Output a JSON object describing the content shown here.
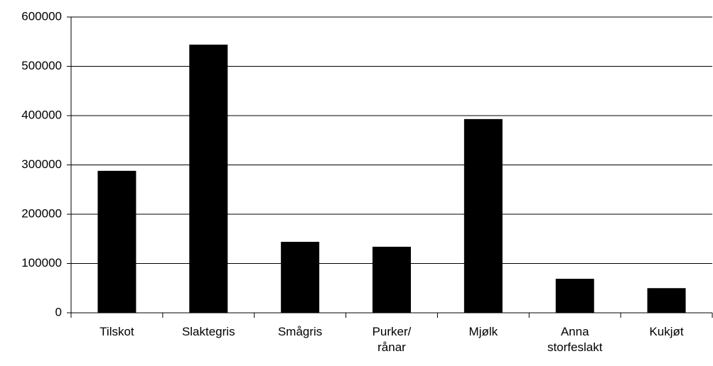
{
  "chart_data": {
    "type": "bar",
    "categories": [
      "Tilskot",
      "Slaktegris",
      "Smågris",
      "Purker/\nrånar",
      "Mjølk",
      "Anna\nstorfeslakt",
      "Kukjøt"
    ],
    "values": [
      288000,
      544000,
      144000,
      134000,
      393000,
      69000,
      50000
    ],
    "color": "#000000",
    "ylim": [
      0,
      600000
    ],
    "yticks": [
      0,
      100000,
      200000,
      300000,
      400000,
      500000,
      600000
    ],
    "grid": true
  }
}
